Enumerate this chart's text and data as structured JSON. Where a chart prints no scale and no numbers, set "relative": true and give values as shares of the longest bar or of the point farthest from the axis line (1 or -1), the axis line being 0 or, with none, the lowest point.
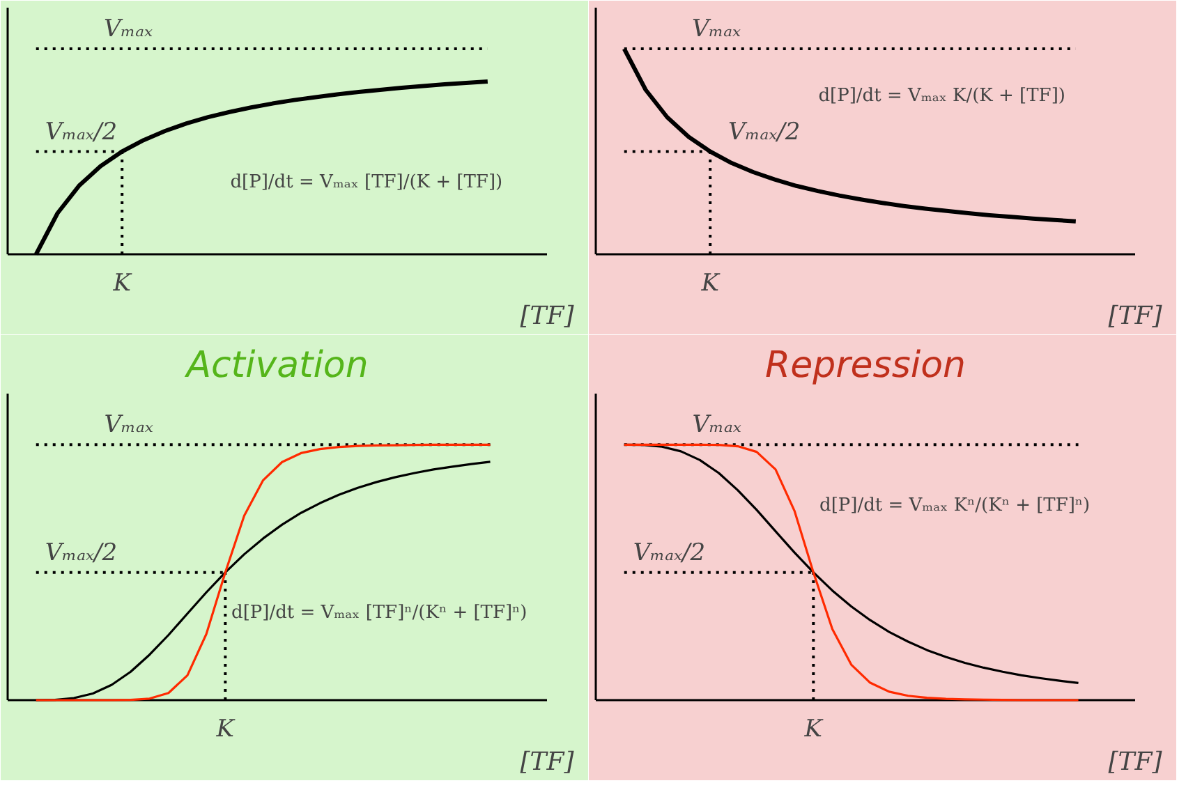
{
  "chart_data": [
    {
      "type": "line",
      "relative": true,
      "xlabel": "[TF]",
      "categories": [
        null,
        null,
        null,
        null,
        null,
        null,
        null,
        null,
        null,
        null,
        null,
        null,
        null,
        null,
        null,
        null,
        null,
        null,
        null,
        null,
        null,
        null
      ],
      "series": [
        {
          "color": "#000000",
          "values": [
            0,
            0.238,
            0.397,
            0.51,
            0.595,
            0.661,
            0.714,
            0.758,
            0.794,
            0.824,
            0.85,
            0.873,
            0.893,
            0.91,
            0.926,
            0.94,
            0.952,
            0.964,
            0.974,
            0.984,
            0.992,
            1
          ]
        }
      ],
      "ref_lines": [
        {
          "axis": "y",
          "value": 1.19,
          "label": "Vₘₐₓ",
          "line_style": "dotted"
        },
        {
          "axis": "y",
          "value": 0.595,
          "label": "Vₘₐₓ/2",
          "line_style": "dotted"
        }
      ],
      "annotations": [
        "d[P]/dt = Vₘₐₓ [TF]/(K + [TF])",
        "K"
      ]
    },
    {
      "type": "line",
      "relative": true,
      "xlabel": "[TF]",
      "categories": [
        null,
        null,
        null,
        null,
        null,
        null,
        null,
        null,
        null,
        null,
        null,
        null,
        null,
        null,
        null,
        null,
        null,
        null,
        null,
        null,
        null,
        null
      ],
      "series": [
        {
          "color": "#000000",
          "values": [
            1,
            0.8,
            0.667,
            0.571,
            0.5,
            0.444,
            0.4,
            0.364,
            0.333,
            0.308,
            0.286,
            0.267,
            0.25,
            0.235,
            0.222,
            0.211,
            0.2,
            0.19,
            0.182,
            0.174,
            0.167,
            0.16
          ]
        }
      ],
      "ref_lines": [
        {
          "axis": "y",
          "value": 1,
          "label": "Vₘₐₓ",
          "line_style": "dotted"
        },
        {
          "axis": "y",
          "value": 0.5,
          "label": "Vₘₐₓ/2",
          "line_style": "dotted"
        }
      ],
      "annotations": [
        "d[P]/dt = Vₘₐₓ K/(K + [TF])",
        "K"
      ]
    },
    {
      "type": "line",
      "relative": true,
      "title": "Activation",
      "xlabel": "[TF]",
      "categories": [
        null,
        null,
        null,
        null,
        null,
        null,
        null,
        null,
        null,
        null,
        null,
        null,
        null,
        null,
        null,
        null,
        null,
        null,
        null,
        null,
        null,
        null,
        null,
        null,
        null
      ],
      "series": [
        {
          "color": "#000000",
          "values": [
            0,
            0.001,
            0.008,
            0.026,
            0.06,
            0.111,
            0.178,
            0.255,
            0.339,
            0.422,
            0.5,
            0.571,
            0.633,
            0.687,
            0.733,
            0.771,
            0.804,
            0.831,
            0.854,
            0.873,
            0.889,
            0.903,
            0.914,
            0.924,
            0.933
          ]
        },
        {
          "color": "#ff2a00",
          "values": [
            0,
            0,
            0,
            0,
            0,
            0.001,
            0.006,
            0.028,
            0.097,
            0.259,
            0.5,
            0.722,
            0.861,
            0.932,
            0.967,
            0.983,
            0.991,
            0.995,
            0.997,
            0.998,
            0.999,
            1,
            1,
            1,
            1
          ]
        }
      ],
      "ref_lines": [
        {
          "axis": "y",
          "value": 1,
          "label": "Vₘₐₓ",
          "line_style": "dotted"
        },
        {
          "axis": "y",
          "value": 0.5,
          "label": "Vₘₐₓ/2",
          "line_style": "dotted"
        }
      ],
      "annotations": [
        "d[P]/dt = Vₘₐₓ [TF]ⁿ/(Kⁿ + [TF]ⁿ)",
        "K"
      ]
    },
    {
      "type": "line",
      "relative": true,
      "title": "Repression",
      "xlabel": "[TF]",
      "categories": [
        null,
        null,
        null,
        null,
        null,
        null,
        null,
        null,
        null,
        null,
        null,
        null,
        null,
        null,
        null,
        null,
        null,
        null,
        null,
        null,
        null,
        null,
        null,
        null,
        null
      ],
      "series": [
        {
          "color": "#000000",
          "values": [
            1,
            0.999,
            0.992,
            0.974,
            0.94,
            0.889,
            0.822,
            0.745,
            0.661,
            0.578,
            0.5,
            0.429,
            0.367,
            0.313,
            0.267,
            0.229,
            0.196,
            0.169,
            0.146,
            0.127,
            0.111,
            0.097,
            0.086,
            0.076,
            0.067
          ]
        },
        {
          "color": "#ff2a00",
          "values": [
            1,
            1,
            1,
            1,
            1,
            0.999,
            0.994,
            0.972,
            0.903,
            0.741,
            0.5,
            0.278,
            0.139,
            0.068,
            0.033,
            0.017,
            0.009,
            0.005,
            0.003,
            0.002,
            0.001,
            0,
            0,
            0,
            0
          ]
        }
      ],
      "ref_lines": [
        {
          "axis": "y",
          "value": 1,
          "label": "Vₘₐₓ",
          "line_style": "dotted"
        },
        {
          "axis": "y",
          "value": 0.5,
          "label": "Vₘₐₓ/2",
          "line_style": "dotted"
        }
      ],
      "annotations": [
        "d[P]/dt = Vₘₐₓ Kⁿ/(Kⁿ + [TF]ⁿ)",
        "K"
      ]
    }
  ]
}
